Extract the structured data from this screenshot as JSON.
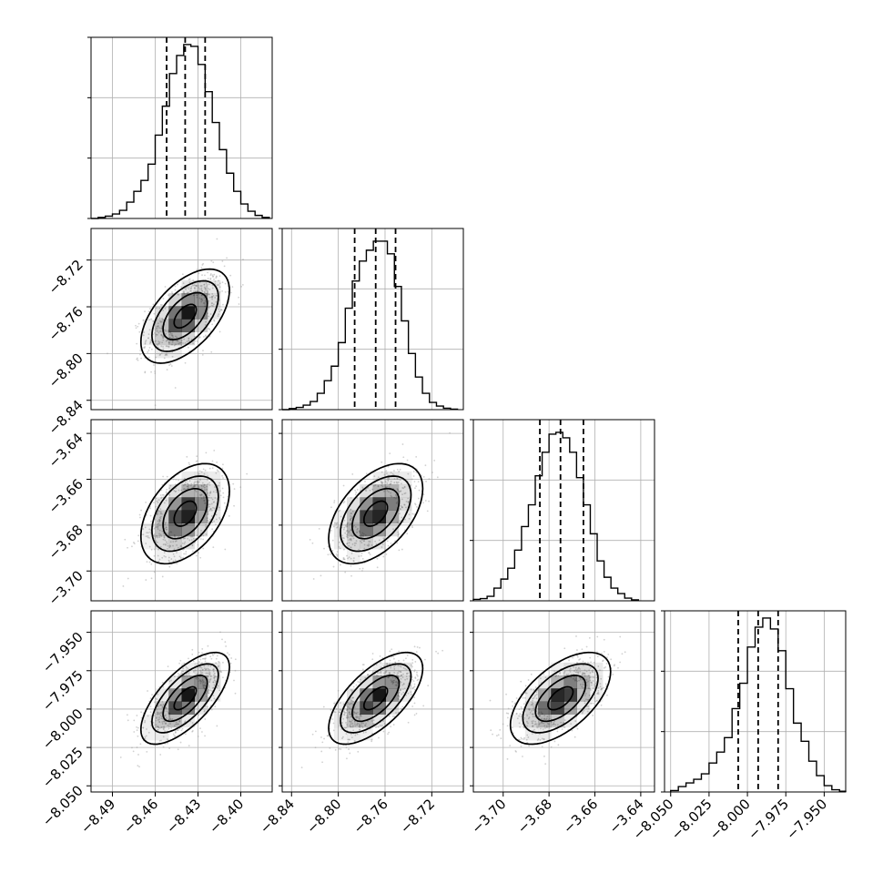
{
  "chart_data": {
    "type": "corner",
    "title": "",
    "grid": true,
    "colors": {
      "line": "#000000",
      "grid": "#b0b0b0",
      "points": "#9a9a9a",
      "density": "#000000",
      "background": "#ffffff"
    },
    "parameters": [
      {
        "range": [
          -8.505,
          -8.378
        ],
        "ticks": [
          -8.49,
          -8.46,
          -8.43,
          -8.4
        ],
        "tick_labels": [
          "−8.49",
          "−8.46",
          "−8.43",
          "−8.40"
        ],
        "show_y_ticklabels": false,
        "quantiles": [
          -8.452,
          -8.439,
          -8.425
        ],
        "histogram": [
          [
            -8.505,
            0.0
          ],
          [
            -8.5,
            0.006
          ],
          [
            -8.495,
            0.013
          ],
          [
            -8.49,
            0.025
          ],
          [
            -8.485,
            0.045
          ],
          [
            -8.48,
            0.09
          ],
          [
            -8.475,
            0.15
          ],
          [
            -8.47,
            0.21
          ],
          [
            -8.465,
            0.3
          ],
          [
            -8.46,
            0.46
          ],
          [
            -8.455,
            0.62
          ],
          [
            -8.45,
            0.8
          ],
          [
            -8.445,
            0.9
          ],
          [
            -8.44,
            0.96
          ],
          [
            -8.435,
            0.95
          ],
          [
            -8.43,
            0.85
          ],
          [
            -8.425,
            0.7
          ],
          [
            -8.42,
            0.53
          ],
          [
            -8.415,
            0.38
          ],
          [
            -8.41,
            0.25
          ],
          [
            -8.405,
            0.15
          ],
          [
            -8.4,
            0.08
          ],
          [
            -8.395,
            0.04
          ],
          [
            -8.39,
            0.017
          ],
          [
            -8.385,
            0.006
          ]
        ]
      },
      {
        "range": [
          -8.848,
          -8.693
        ],
        "ticks": [
          -8.84,
          -8.8,
          -8.76,
          -8.72
        ],
        "tick_labels": [
          "−8.84",
          "−8.80",
          "−8.76",
          "−8.72"
        ],
        "show_y_ticklabels": true,
        "quantiles": [
          -8.786,
          -8.768,
          -8.751
        ],
        "histogram": [
          [
            -8.848,
            0.0
          ],
          [
            -8.842,
            0.006
          ],
          [
            -8.836,
            0.012
          ],
          [
            -8.83,
            0.025
          ],
          [
            -8.824,
            0.045
          ],
          [
            -8.818,
            0.09
          ],
          [
            -8.812,
            0.16
          ],
          [
            -8.806,
            0.24
          ],
          [
            -8.8,
            0.37
          ],
          [
            -8.794,
            0.56
          ],
          [
            -8.788,
            0.71
          ],
          [
            -8.782,
            0.82
          ],
          [
            -8.776,
            0.88
          ],
          [
            -8.77,
            0.93
          ],
          [
            -8.764,
            0.93
          ],
          [
            -8.758,
            0.86
          ],
          [
            -8.752,
            0.68
          ],
          [
            -8.746,
            0.49
          ],
          [
            -8.74,
            0.31
          ],
          [
            -8.734,
            0.18
          ],
          [
            -8.728,
            0.09
          ],
          [
            -8.722,
            0.04
          ],
          [
            -8.716,
            0.02
          ],
          [
            -8.71,
            0.008
          ],
          [
            -8.704,
            0.003
          ]
        ]
      },
      {
        "range": [
          -3.713,
          -3.634
        ],
        "ticks": [
          -3.7,
          -3.68,
          -3.66,
          -3.64
        ],
        "tick_labels": [
          "−3.70",
          "−3.68",
          "−3.66",
          "−3.64"
        ],
        "show_y_ticklabels": true,
        "quantiles": [
          -3.684,
          -3.675,
          -3.665
        ],
        "histogram": [
          [
            -3.713,
            0.008
          ],
          [
            -3.71,
            0.012
          ],
          [
            -3.707,
            0.025
          ],
          [
            -3.704,
            0.07
          ],
          [
            -3.701,
            0.12
          ],
          [
            -3.698,
            0.18
          ],
          [
            -3.695,
            0.28
          ],
          [
            -3.692,
            0.41
          ],
          [
            -3.689,
            0.53
          ],
          [
            -3.686,
            0.69
          ],
          [
            -3.683,
            0.82
          ],
          [
            -3.68,
            0.92
          ],
          [
            -3.677,
            0.93
          ],
          [
            -3.674,
            0.9
          ],
          [
            -3.671,
            0.82
          ],
          [
            -3.668,
            0.68
          ],
          [
            -3.665,
            0.53
          ],
          [
            -3.662,
            0.37
          ],
          [
            -3.659,
            0.22
          ],
          [
            -3.656,
            0.13
          ],
          [
            -3.653,
            0.07
          ],
          [
            -3.65,
            0.04
          ],
          [
            -3.647,
            0.015
          ],
          [
            -3.644,
            0.005
          ]
        ]
      },
      {
        "range": [
          -8.054,
          -7.936
        ],
        "ticks": [
          -8.05,
          -8.025,
          -8.0,
          -7.975,
          -7.95
        ],
        "tick_labels": [
          "−8.050",
          "−8.025",
          "−8.000",
          "−7.975",
          "−7.950"
        ],
        "show_y_ticklabels": true,
        "quantiles": [
          -8.006,
          -7.993,
          -7.98
        ],
        "histogram": [
          [
            -8.05,
            0.008
          ],
          [
            -8.045,
            0.03
          ],
          [
            -8.04,
            0.05
          ],
          [
            -8.035,
            0.07
          ],
          [
            -8.03,
            0.1
          ],
          [
            -8.025,
            0.16
          ],
          [
            -8.02,
            0.22
          ],
          [
            -8.015,
            0.3
          ],
          [
            -8.01,
            0.46
          ],
          [
            -8.005,
            0.6
          ],
          [
            -8.0,
            0.8
          ],
          [
            -7.995,
            0.91
          ],
          [
            -7.99,
            0.96
          ],
          [
            -7.985,
            0.9
          ],
          [
            -7.98,
            0.78
          ],
          [
            -7.975,
            0.57
          ],
          [
            -7.97,
            0.38
          ],
          [
            -7.965,
            0.28
          ],
          [
            -7.96,
            0.17
          ],
          [
            -7.955,
            0.09
          ],
          [
            -7.95,
            0.035
          ],
          [
            -7.945,
            0.012
          ],
          [
            -7.94,
            0.004
          ]
        ]
      }
    ],
    "pairs": [
      {
        "x": 0,
        "y": 1,
        "correlation": 0.55
      },
      {
        "x": 0,
        "y": 2,
        "correlation": 0.45
      },
      {
        "x": 1,
        "y": 2,
        "correlation": 0.5
      },
      {
        "x": 0,
        "y": 3,
        "correlation": 0.68
      },
      {
        "x": 1,
        "y": 3,
        "correlation": 0.65
      },
      {
        "x": 2,
        "y": 3,
        "correlation": 0.58
      }
    ],
    "contour_levels_sigma": [
      0.5,
      1.0,
      1.5,
      2.0
    ]
  }
}
